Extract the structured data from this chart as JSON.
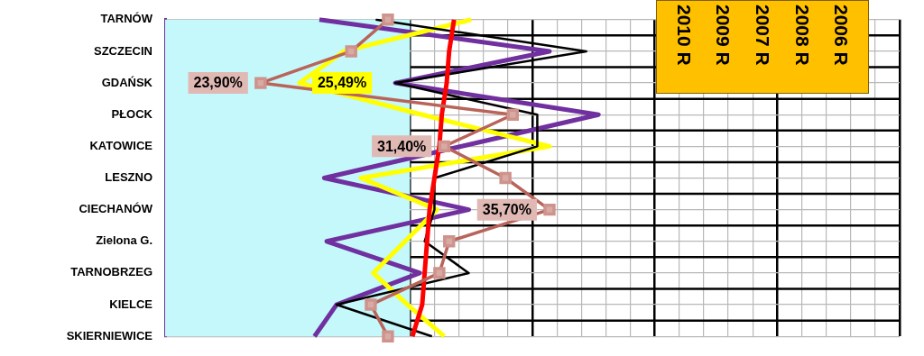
{
  "chart_data": {
    "type": "line",
    "orientation": "horizontal",
    "categories": [
      "TARNÓW",
      "SZCZECIN",
      "GDAŃSK",
      "PŁOCK",
      "KATOWICE",
      "LESZNO",
      "CIECHANÓW",
      "Zielona G.",
      "TARNOBRZEG",
      "KIELCE",
      "SKIERNIEWICE"
    ],
    "series": [
      {
        "color": "#7030a0",
        "values": [
          26.3,
          35.7,
          29.4,
          37.7,
          null,
          26.5,
          32.4,
          26.6,
          30.4,
          27.0,
          26.1
        ]
      },
      {
        "color": "#ffff00",
        "values": [
          32.5,
          27.3,
          25.49,
          30.5,
          35.7,
          28.0,
          31.1,
          29.8,
          28.5,
          29.9,
          31.4
        ],
        "value_labels": [
          null,
          null,
          "25,49%",
          null,
          null,
          null,
          null,
          null,
          null,
          null,
          null
        ]
      },
      {
        "color": "#000000",
        "values": [
          28.6,
          37.2,
          29.4,
          35.2,
          35.2,
          31.0,
          31.0,
          30.6,
          32.4,
          27.0,
          30.9
        ]
      },
      {
        "color": "#ff0000",
        "values": [
          31.8,
          31.6,
          31.5,
          31.3,
          31.2,
          31.0,
          30.8,
          30.7,
          30.6,
          30.5,
          30.1
        ]
      },
      {
        "color": "#b9645a",
        "marker": "square",
        "values": [
          29.1,
          27.6,
          23.9,
          34.2,
          31.4,
          33.9,
          35.7,
          31.6,
          31.2,
          28.4,
          29.1
        ],
        "value_labels": [
          null,
          null,
          "23,90%",
          null,
          "31,40%",
          null,
          "35,70%",
          null,
          null,
          null,
          null
        ]
      }
    ],
    "xlim": [
      20,
      50
    ],
    "bands": [
      {
        "axis": "x",
        "from": 20,
        "to": 30,
        "color": "#c4f8fa"
      }
    ],
    "grid": true,
    "tick_labels": "y",
    "annotations": [
      "2010 R",
      "2009 R",
      "2007 R",
      "2008 R",
      "2006 R"
    ]
  }
}
